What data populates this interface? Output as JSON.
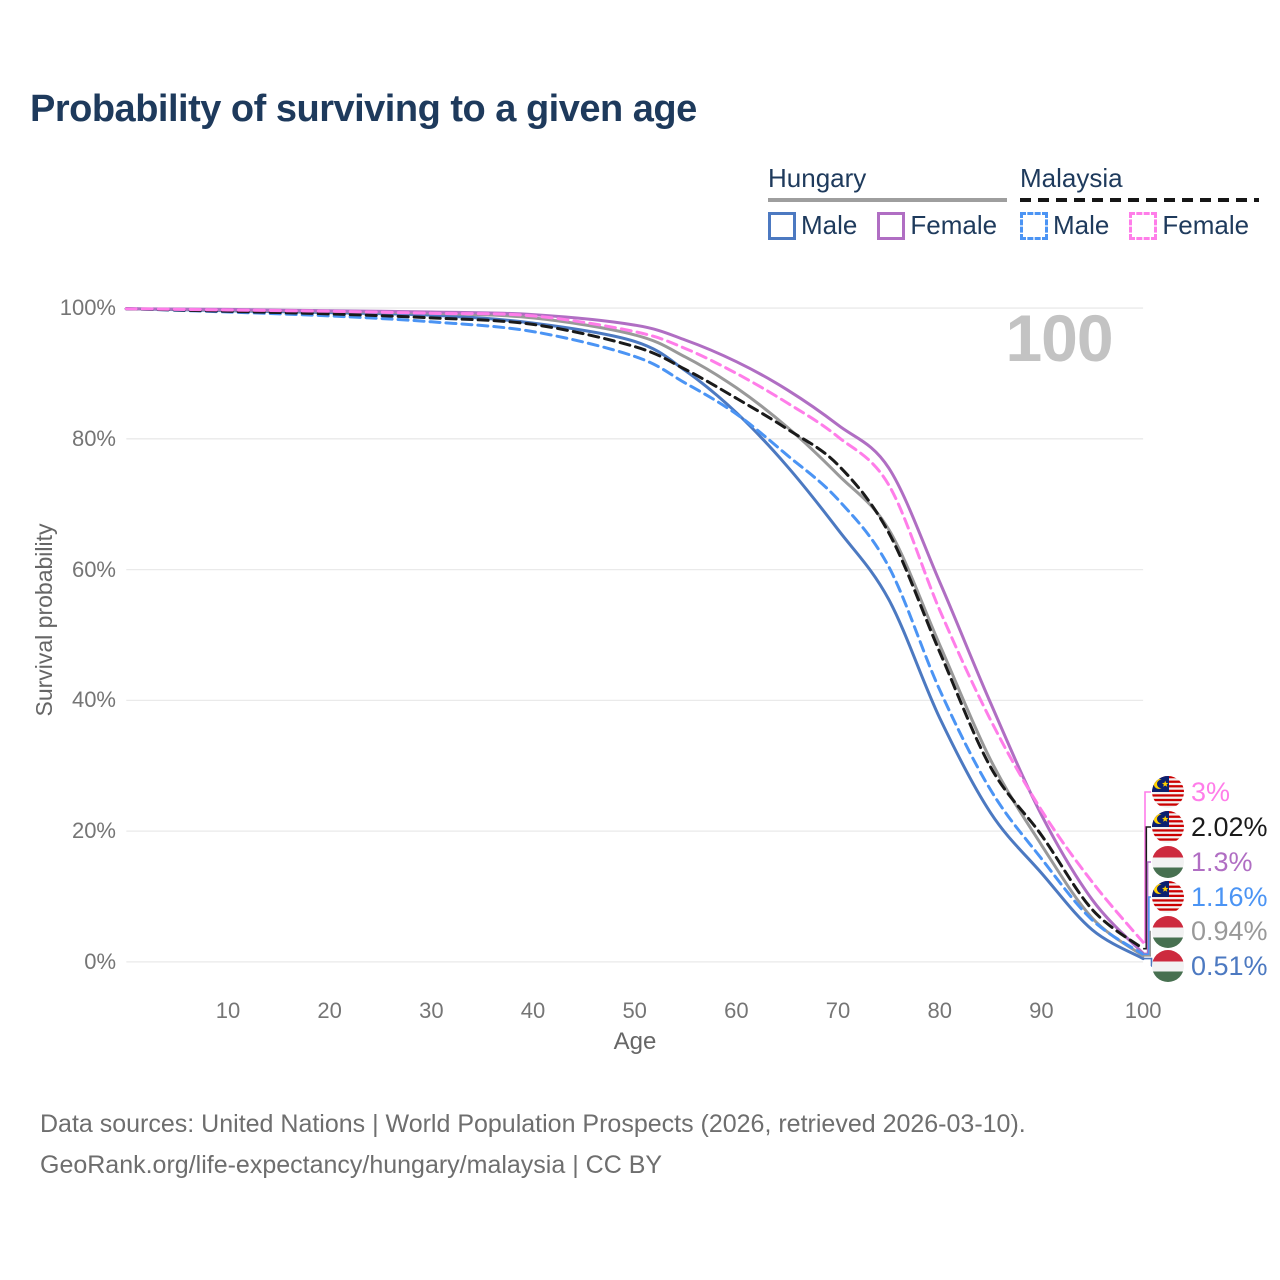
{
  "title": "Probability of surviving to a given age",
  "watermark": "100",
  "colors": {
    "title_text": "#1e3a5c",
    "legend_text": "#1e3a5c",
    "axis_text": "#757575",
    "watermark": "#c3c3c3",
    "gridline": "#eaeaea",
    "hungary_rule": "#9e9e9e",
    "malaysia_rule": "#161616",
    "hungary_male": "#4c79c1",
    "hungary_female": "#b06ec3",
    "hungary_total": "#999999",
    "malaysia_male": "#4b94f4",
    "malaysia_female": "#ff7de9",
    "malaysia_total": "#1a1a1a"
  },
  "legend": {
    "hungary": {
      "country": "Hungary",
      "male": "Male",
      "female": "Female"
    },
    "malaysia": {
      "country": "Malaysia",
      "male": "Male",
      "female": "Female"
    }
  },
  "chart_data": {
    "type": "line",
    "title": "Probability of surviving to a given age",
    "xlabel": "Age",
    "ylabel": "Survival probability",
    "xlim": [
      0,
      100
    ],
    "ylim": [
      0,
      100
    ],
    "grid": "horizontal-only",
    "legend_position": "top-right",
    "x_ticks": [
      10,
      20,
      30,
      40,
      50,
      60,
      70,
      80,
      90,
      100
    ],
    "y_ticks": [
      {
        "value": 100,
        "label": "100%"
      },
      {
        "value": 80,
        "label": "80%"
      },
      {
        "value": 60,
        "label": "60%"
      },
      {
        "value": 40,
        "label": "40%"
      },
      {
        "value": 20,
        "label": "20%"
      },
      {
        "value": 0,
        "label": "0%"
      }
    ],
    "x": [
      0,
      10,
      20,
      30,
      40,
      50,
      55,
      60,
      65,
      70,
      75,
      80,
      85,
      90,
      95,
      100
    ],
    "x_unit": "years of age",
    "y_unit": "percent surviving",
    "series": [
      {
        "key": "hungary_male",
        "name": "Hungary Male",
        "country": "Hungary",
        "sex": "Male",
        "style": "solid",
        "color": "#4c79c1",
        "values": [
          99.9,
          99.6,
          99.3,
          98.9,
          97.7,
          94.9,
          90.4,
          84.0,
          75.8,
          66.1,
          55.4,
          37.3,
          22.8,
          13.6,
          4.9,
          0.51
        ]
      },
      {
        "key": "hungary_total",
        "name": "Hungary Both sexes",
        "country": "Hungary",
        "sex": "Both",
        "style": "solid",
        "color": "#999999",
        "values": [
          99.9,
          99.7,
          99.5,
          99.2,
          98.5,
          95.9,
          92.5,
          87.8,
          81.8,
          74.5,
          66.1,
          48.5,
          30.9,
          17.9,
          6.7,
          0.94
        ]
      },
      {
        "key": "hungary_female",
        "name": "Hungary Female",
        "country": "Hungary",
        "sex": "Female",
        "style": "solid",
        "color": "#b06ec3",
        "values": [
          99.9,
          99.8,
          99.6,
          99.4,
          99.0,
          97.4,
          95.1,
          91.8,
          87.5,
          82.1,
          75.5,
          58.1,
          39.6,
          22.5,
          9.5,
          1.3
        ]
      },
      {
        "key": "malaysia_male",
        "name": "Malaysia Male",
        "country": "Malaysia",
        "sex": "Male",
        "style": "dashed",
        "color": "#4b94f4",
        "values": [
          99.9,
          99.4,
          98.8,
          97.9,
          96.4,
          92.6,
          88.5,
          83.8,
          77.5,
          70.7,
          60.4,
          41.6,
          26.3,
          15.8,
          6.4,
          1.16
        ]
      },
      {
        "key": "malaysia_total",
        "name": "Malaysia Both sexes",
        "country": "Malaysia",
        "sex": "Both",
        "style": "dashed",
        "color": "#1a1a1a",
        "values": [
          99.9,
          99.5,
          99.1,
          98.5,
          97.5,
          94.1,
          90.6,
          86.2,
          81.5,
          76.0,
          65.6,
          47.4,
          29.8,
          19.4,
          8.0,
          2.02
        ]
      },
      {
        "key": "malaysia_female",
        "name": "Malaysia Female",
        "country": "Malaysia",
        "sex": "Female",
        "style": "dashed",
        "color": "#ff7de9",
        "values": [
          99.9,
          99.7,
          99.5,
          99.2,
          98.8,
          96.4,
          93.8,
          90.0,
          85.5,
          80.3,
          72.9,
          53.8,
          37.0,
          23.2,
          12.2,
          3.0
        ]
      }
    ],
    "end_labels": [
      {
        "text": "3%",
        "series": "malaysia_female",
        "flag": "malaysia",
        "color": "#ff7de9"
      },
      {
        "text": "2.02%",
        "series": "malaysia_total",
        "flag": "malaysia",
        "color": "#1a1a1a"
      },
      {
        "text": "1.3%",
        "series": "hungary_female",
        "flag": "hungary",
        "color": "#b06ec3"
      },
      {
        "text": "1.16%",
        "series": "malaysia_male",
        "flag": "malaysia",
        "color": "#4b94f4"
      },
      {
        "text": "0.94%",
        "series": "hungary_total",
        "flag": "hungary",
        "color": "#999999"
      },
      {
        "text": "0.51%",
        "series": "hungary_male",
        "flag": "hungary",
        "color": "#4c79c1"
      }
    ],
    "annotations": [
      {
        "text": "100",
        "role": "age-watermark"
      }
    ]
  },
  "footer": {
    "line1": "Data sources: United Nations | World Population Prospects (2026, retrieved 2026-03-10).",
    "line2": "GeoRank.org/life-expectancy/hungary/malaysia | CC BY"
  }
}
